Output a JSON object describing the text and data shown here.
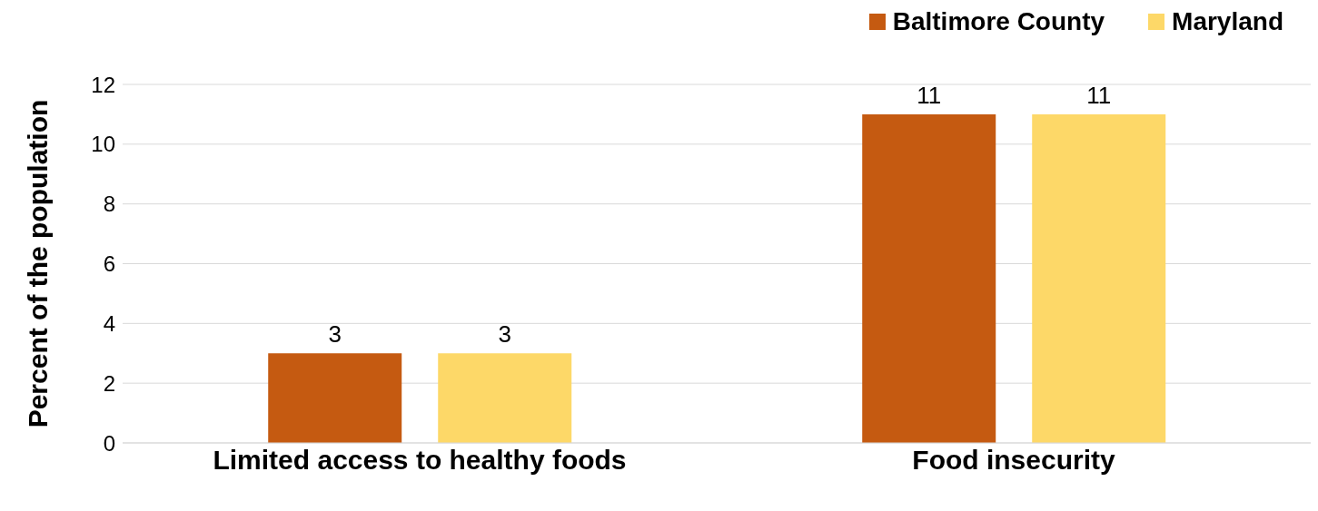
{
  "chart_data": {
    "type": "bar",
    "ylabel": "Percent of the population",
    "categories": [
      "Limited access to healthy foods",
      "Food insecurity"
    ],
    "series": [
      {
        "name": "Baltimore County",
        "color": "#c55a11",
        "values": [
          3,
          11
        ]
      },
      {
        "name": "Maryland",
        "color": "#fdd868",
        "values": [
          3,
          11
        ]
      }
    ],
    "ylim": [
      0,
      12
    ],
    "yticks": [
      0,
      2,
      4,
      6,
      8,
      10,
      12
    ],
    "grid": "y",
    "legend": "top right",
    "data_labels": true
  }
}
